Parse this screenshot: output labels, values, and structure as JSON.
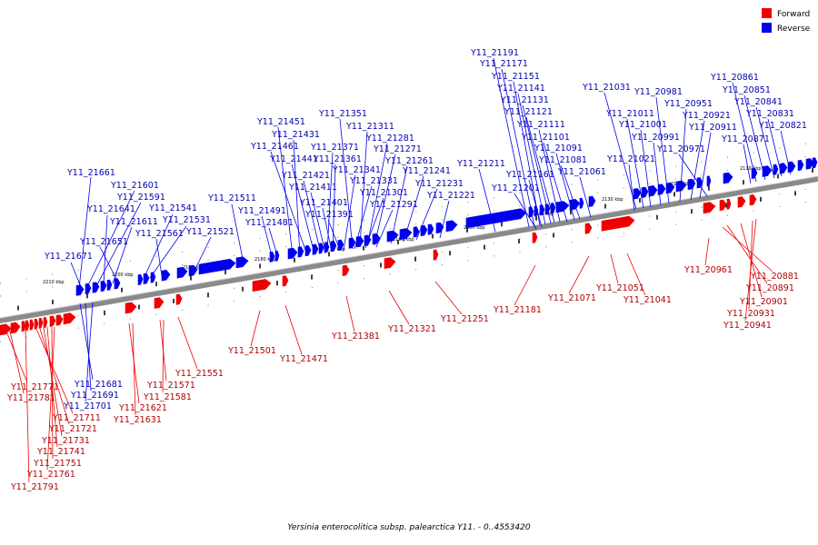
{
  "caption": "Yersinia enterocolitica subsp. palearctica Y11. - 0..4553420",
  "colors": {
    "forward": "#ee0000",
    "reverse": "#0000ee",
    "axis": "#888888"
  },
  "legend": [
    {
      "name": "forward",
      "label": "Forward",
      "color": "#ee0000"
    },
    {
      "name": "reverse",
      "label": "Reverse",
      "color": "#0000ee"
    }
  ],
  "tick_labels": [
    "2210 kbp",
    "2200 kbp",
    "2190 kbp",
    "2180 kbp",
    "2170 kbp",
    "2160 kbp",
    "2150 kbp",
    "2140 kbp",
    "2130 kbp",
    "2120 kbp",
    "2110 kbp"
  ],
  "forward_labels": [
    "Y11_21771",
    "Y11_21781",
    "Y11_21711",
    "Y11_21721",
    "Y11_21731",
    "Y11_21741",
    "Y11_21751",
    "Y11_21761",
    "Y11_21791",
    "Y11_21621",
    "Y11_21631",
    "Y11_21571",
    "Y11_21581",
    "Y11_21551",
    "Y11_21501",
    "Y11_21471",
    "Y11_21381",
    "Y11_21321",
    "Y11_21251",
    "Y11_21181",
    "Y11_21071",
    "Y11_21051",
    "Y11_21041",
    "Y11_20961",
    "Y11_20881",
    "Y11_20891",
    "Y11_20901",
    "Y11_20931",
    "Y11_20941"
  ],
  "reverse_labels": [
    "Y11_21191",
    "Y11_21171",
    "Y11_21151",
    "Y11_21141",
    "Y11_21131",
    "Y11_21121",
    "Y11_21111",
    "Y11_21101",
    "Y11_21091",
    "Y11_21081",
    "Y11_21061",
    "Y11_21161",
    "Y11_21201",
    "Y11_21211",
    "Y11_21031",
    "Y11_21011",
    "Y11_21001",
    "Y11_20991",
    "Y11_20981",
    "Y11_20951",
    "Y11_20921",
    "Y11_20911",
    "Y11_20971",
    "Y11_21021",
    "Y11_20861",
    "Y11_20851",
    "Y11_20841",
    "Y11_20831",
    "Y11_20821",
    "Y11_20871",
    "Y11_21351",
    "Y11_21311",
    "Y11_21281",
    "Y11_21271",
    "Y11_21261",
    "Y11_21241",
    "Y11_21231",
    "Y11_21221",
    "Y11_21451",
    "Y11_21431",
    "Y11_21461",
    "Y11_21441",
    "Y11_21421",
    "Y11_21411",
    "Y11_21401",
    "Y11_21391",
    "Y11_21371",
    "Y11_21361",
    "Y11_21341",
    "Y11_21331",
    "Y11_21301",
    "Y11_21291",
    "Y11_21511",
    "Y11_21491",
    "Y11_21481",
    "Y11_21661",
    "Y11_21601",
    "Y11_21591",
    "Y11_21641",
    "Y11_21611",
    "Y11_21541",
    "Y11_21531",
    "Y11_21651",
    "Y11_21561",
    "Y11_21521",
    "Y11_21671",
    "Y11_21681",
    "Y11_21691",
    "Y11_21701"
  ]
}
